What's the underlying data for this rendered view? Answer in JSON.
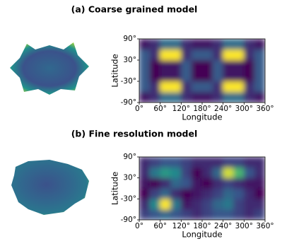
{
  "chart_data": [
    {
      "type": "heatmap",
      "title": "(a) Coarse grained model",
      "xlabel": "Longitude",
      "ylabel": "Latitude",
      "xlim": [
        0,
        360
      ],
      "ylim": [
        -90,
        90
      ],
      "colormap": "viridis",
      "xticks": [
        {
          "value": 0,
          "label": "0°"
        },
        {
          "value": 60,
          "label": "60°"
        },
        {
          "value": 120,
          "label": "120°"
        },
        {
          "value": 180,
          "label": "180°"
        },
        {
          "value": 240,
          "label": "240°"
        },
        {
          "value": 300,
          "label": "300°"
        },
        {
          "value": 360,
          "label": "360°"
        }
      ],
      "yticks": [
        {
          "value": -90,
          "label": "-90°"
        },
        {
          "value": -30,
          "label": "-30°"
        },
        {
          "value": 30,
          "label": "30°"
        },
        {
          "value": 90,
          "label": "90°"
        }
      ],
      "z": [
        [
          0.3,
          0.35,
          0.5,
          0.5,
          0.35,
          0.3,
          0.3,
          0.35,
          0.5,
          0.5,
          0.35,
          0.3
        ],
        [
          0.45,
          0.35,
          0.95,
          0.95,
          0.35,
          0.45,
          0.45,
          0.35,
          0.95,
          0.95,
          0.35,
          0.45
        ],
        [
          0.45,
          0.25,
          0.3,
          0.3,
          0.45,
          0.25,
          0.25,
          0.45,
          0.3,
          0.3,
          0.25,
          0.45
        ],
        [
          0.45,
          0.25,
          0.3,
          0.3,
          0.45,
          0.25,
          0.25,
          0.45,
          0.3,
          0.3,
          0.25,
          0.45
        ],
        [
          0.45,
          0.35,
          0.95,
          0.95,
          0.35,
          0.45,
          0.45,
          0.35,
          0.95,
          0.95,
          0.35,
          0.45
        ],
        [
          0.3,
          0.35,
          0.5,
          0.5,
          0.35,
          0.3,
          0.3,
          0.35,
          0.5,
          0.5,
          0.35,
          0.3
        ]
      ]
    },
    {
      "type": "heatmap",
      "title": "(b) Fine resolution model",
      "xlabel": "Longitude",
      "ylabel": "Latitude",
      "xlim": [
        0,
        360
      ],
      "ylim": [
        -90,
        90
      ],
      "colormap": "viridis",
      "xticks": [
        {
          "value": 0,
          "label": "0°"
        },
        {
          "value": 60,
          "label": "60°"
        },
        {
          "value": 120,
          "label": "120°"
        },
        {
          "value": 180,
          "label": "180°"
        },
        {
          "value": 240,
          "label": "240°"
        },
        {
          "value": 300,
          "label": "300°"
        },
        {
          "value": 360,
          "label": "360°"
        }
      ],
      "yticks": [
        {
          "value": -90,
          "label": "-90°"
        },
        {
          "value": -30,
          "label": "-30°"
        },
        {
          "value": 30,
          "label": "30°"
        },
        {
          "value": 90,
          "label": "90°"
        }
      ],
      "z": [
        [
          0.35,
          0.4,
          0.45,
          0.4,
          0.35,
          0.3,
          0.35,
          0.4,
          0.4,
          0.35,
          0.3,
          0.35
        ],
        [
          0.3,
          0.55,
          0.95,
          0.5,
          0.25,
          0.3,
          0.35,
          0.45,
          0.5,
          0.35,
          0.3,
          0.3
        ],
        [
          0.2,
          0.35,
          0.45,
          0.3,
          0.2,
          0.25,
          0.3,
          0.35,
          0.45,
          0.4,
          0.3,
          0.2
        ],
        [
          0.25,
          0.2,
          0.3,
          0.45,
          0.4,
          0.25,
          0.2,
          0.3,
          0.35,
          0.3,
          0.25,
          0.25
        ],
        [
          0.3,
          0.5,
          0.6,
          0.55,
          0.35,
          0.2,
          0.3,
          0.45,
          0.9,
          0.7,
          0.4,
          0.3
        ],
        [
          0.3,
          0.35,
          0.4,
          0.4,
          0.35,
          0.3,
          0.3,
          0.3,
          0.35,
          0.35,
          0.3,
          0.3
        ]
      ]
    }
  ]
}
